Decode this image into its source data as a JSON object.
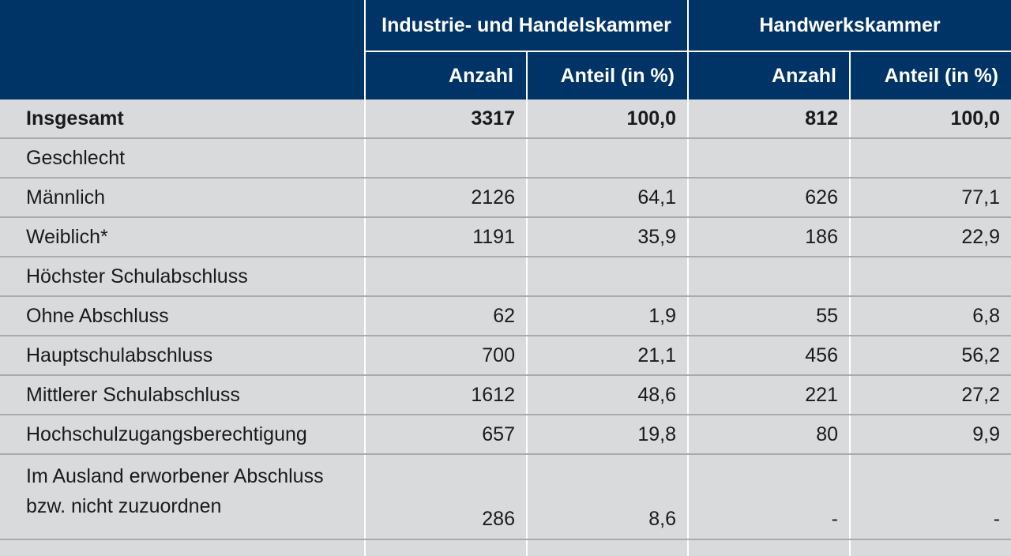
{
  "header": {
    "group1": "Industrie- und Handelskammer",
    "group2": "Handwerkskammer",
    "sub_anzahl": "Anzahl",
    "sub_anteil": "Anteil (in %)"
  },
  "rows": [
    {
      "label": "Insgesamt",
      "v": [
        "3317",
        "100,0",
        "812",
        "100,0"
      ]
    },
    {
      "label": "Geschlecht"
    },
    {
      "label": "Männlich",
      "v": [
        "2126",
        "64,1",
        "626",
        "77,1"
      ]
    },
    {
      "label": "Weiblich*",
      "v": [
        "1191",
        "35,9",
        "186",
        "22,9"
      ]
    },
    {
      "label": "Höchster Schulabschluss"
    },
    {
      "label": "Ohne Abschluss",
      "v": [
        "62",
        "1,9",
        "55",
        "6,8"
      ]
    },
    {
      "label": "Hauptschulabschluss",
      "v": [
        "700",
        "21,1",
        "456",
        "56,2"
      ]
    },
    {
      "label": "Mittlerer Schulabschluss",
      "v": [
        "1612",
        "48,6",
        "221",
        "27,2"
      ]
    },
    {
      "label": "Hochschulzugangsberechtigung",
      "v": [
        "657",
        "19,8",
        "80",
        "9,9"
      ]
    },
    {
      "label_line1": "Im Ausland erworbener Abschluss",
      "label_line2": "bzw. nicht zuzuordnen",
      "v": [
        "286",
        "8,6",
        "-",
        "-"
      ]
    }
  ]
}
